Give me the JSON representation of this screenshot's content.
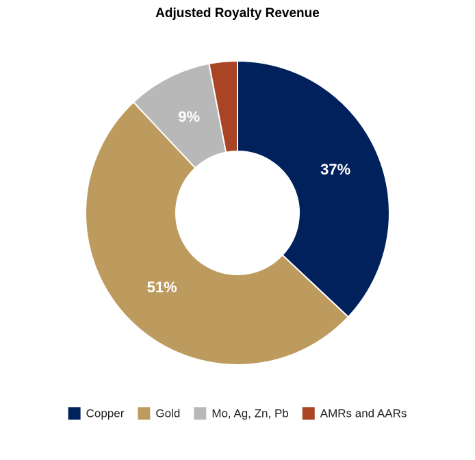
{
  "chart_data": {
    "type": "donut",
    "title": "Adjusted Royalty Revenue",
    "categories": [
      "Copper",
      "Gold",
      "Mo, Ag, Zn, Pb",
      "AMRs and AARs"
    ],
    "values": [
      37,
      51,
      9,
      3
    ],
    "value_labels": [
      "37%",
      "51%",
      "9%",
      null
    ],
    "colors": [
      "#00215b",
      "#bd9b5e",
      "#b8b8b8",
      "#a94425"
    ],
    "legend": "bottom"
  }
}
